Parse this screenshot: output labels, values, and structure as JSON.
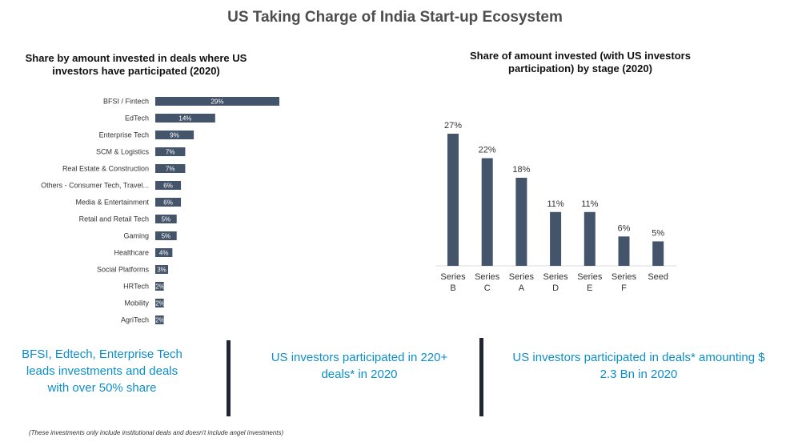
{
  "title": "US Taking Charge of India Start-up Ecosystem",
  "chart_data": [
    {
      "type": "bar",
      "orientation": "horizontal",
      "title": "Share by amount invested in deals where US investors have participated (2020)",
      "categories": [
        "BFSI / Fintech",
        "EdTech",
        "Enterprise Tech",
        "SCM & Logistics",
        "Real Estate & Construction",
        "Others - Consumer Tech, Travel...",
        "Media & Entertainment",
        "Retail and Retail Tech",
        "Gaming",
        "Healthcare",
        "Social Platforms",
        "HRTech",
        "Mobility",
        "AgriTech"
      ],
      "values": [
        29,
        14,
        9,
        7,
        7,
        6,
        6,
        5,
        5,
        4,
        3,
        2,
        2,
        2
      ],
      "labels": [
        "29%",
        "14%",
        "9%",
        "7%",
        "7%",
        "6%",
        "6%",
        "5%",
        "5%",
        "4%",
        "3%",
        "2%",
        "2%",
        "2%"
      ],
      "xlim": [
        0,
        29
      ],
      "color": "#44546a"
    },
    {
      "type": "bar",
      "title": "Share of amount invested (with US investors participation) by stage (2020)",
      "categories": [
        [
          "Series",
          "B"
        ],
        [
          "Series",
          "C"
        ],
        [
          "Series",
          "A"
        ],
        [
          "Series",
          "D"
        ],
        [
          "Series",
          "E"
        ],
        [
          "Series",
          "F"
        ],
        [
          "Seed",
          ""
        ]
      ],
      "values": [
        27,
        22,
        18,
        11,
        11,
        6,
        5
      ],
      "labels": [
        "27%",
        "22%",
        "18%",
        "11%",
        "11%",
        "6%",
        "5%"
      ],
      "ylim": [
        0,
        27
      ],
      "color": "#44546a"
    }
  ],
  "callouts": [
    "BFSI, Edtech, Enterprise Tech leads investments and deals with over 50% share",
    "US investors participated in 220+ deals* in 2020",
    "US investors participated in deals* amounting $ 2.3 Bn in 2020"
  ],
  "footnote": "(These investments only include institutional deals and doesn't include angel investments)"
}
